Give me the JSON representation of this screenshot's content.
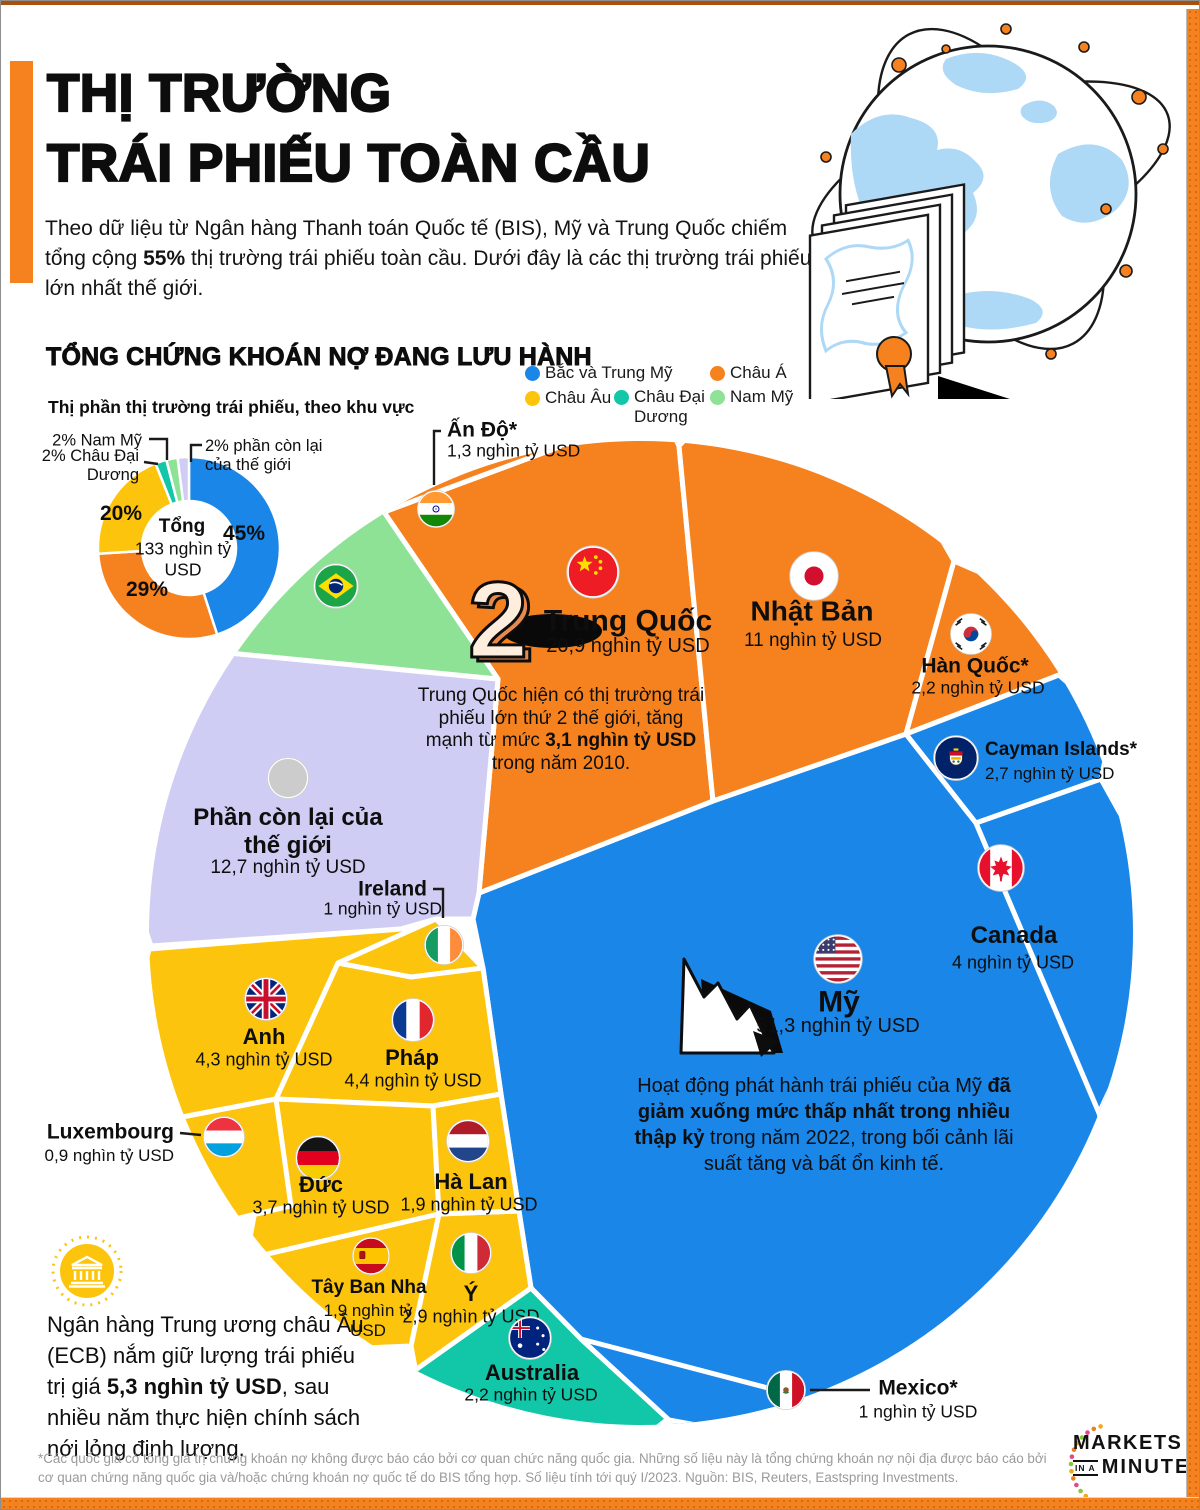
{
  "page": {
    "title_lines": [
      "THỊ TRƯỜNG",
      "TRÁI PHIẾU TOÀN CẦU"
    ],
    "intro_segments": [
      {
        "t": "Theo dữ liệu từ Ngân hàng Thanh toán Quốc tế (BIS), Mỹ và Trung Quốc chiếm tổng cộng "
      },
      {
        "t": "55%",
        "b": true
      },
      {
        "t": " thị trường trái phiếu toàn cầu. Dưới đây là các thị trường trái phiếu lớn nhất thế giới."
      }
    ],
    "footer_note": "*Các quốc gia có tổng giá trị chứng khoán nợ không được báo cáo bởi cơ quan chức năng quốc gia. Những số liệu này là tổng chứng khoán nợ nội địa được báo cáo bởi cơ quan chứng năng quốc gia và/hoặc chứng khoán nợ quốc tế do BIS tổng hợp. Số liệu tính tới quý I/2023. Nguồn: BIS, Reuters, Eastspring Investments.",
    "logo": {
      "word1": "MARKETS",
      "word2_small": "IN A",
      "word2": "MINUTE"
    }
  },
  "section": {
    "heading": "TỔNG CHỨNG KHOÁN NỢ ĐANG LƯU HÀNH",
    "subheading": "Thị phần thị trường trái phiếu, theo khu vực"
  },
  "legend": {
    "items": [
      {
        "id": "north-central-america",
        "label": "Bắc và Trung Mỹ",
        "color": "#1a86e8"
      },
      {
        "id": "asia",
        "label": "Châu Á",
        "color": "#f6821f"
      },
      {
        "id": "europe",
        "label": "Châu Âu",
        "color": "#fdc40d"
      },
      {
        "id": "oceania",
        "label": "Châu Đại Dương",
        "color": "#12c6a8"
      },
      {
        "id": "south-america",
        "label": "Nam Mỹ",
        "color": "#8ee296"
      }
    ]
  },
  "notes": {
    "china_note": [
      {
        "t": "Trung Quốc hiện có thị trường trái phiếu lớn thứ 2 thế giới, tăng mạnh từ mức "
      },
      {
        "t": "3,1 nghìn tỷ USD",
        "b": true
      },
      {
        "t": " trong năm 2010."
      }
    ],
    "us_note": [
      {
        "t": "Hoạt động phát hành trái phiếu của Mỹ "
      },
      {
        "t": "đã giảm xuống mức thấp nhất trong nhiều thập kỷ",
        "b": true
      },
      {
        "t": " trong năm 2022, trong bối cảnh lãi suất tăng và bất ổn kinh tế."
      }
    ],
    "ecb_note": [
      {
        "t": "Ngân hàng Trung ương châu Âu (ECB) nắm giữ lượng trái phiếu trị giá "
      },
      {
        "t": "5,3 nghìn tỷ USD",
        "b": true
      },
      {
        "t": ", sau nhiều năm thực hiện chính sách nới lỏng định lượng."
      }
    ]
  },
  "chart_data": [
    {
      "type": "pie",
      "subtype": "donut",
      "title": "Thị phần thị trường trái phiếu, theo khu vực",
      "center": {
        "label": "Tổng",
        "value": "133 nghìn tỷ",
        "unit": "USD"
      },
      "slices": [
        {
          "label": "Bắc và Trung Mỹ",
          "pct": 45,
          "color": "#1a86e8",
          "value_label": "45%"
        },
        {
          "label": "Châu Á",
          "pct": 29,
          "color": "#f6821f",
          "value_label": "29%"
        },
        {
          "label": "Châu Âu",
          "pct": 20,
          "color": "#fdc40d",
          "value_label": "20%"
        },
        {
          "label": "Châu Đại Dương",
          "pct": 2,
          "color": "#12c6a8",
          "value_label": "2% Châu Đại Dương"
        },
        {
          "label": "Nam Mỹ",
          "pct": 2,
          "color": "#8ee296",
          "value_label": "2% Nam Mỹ"
        },
        {
          "label": "Phần còn lại của thế giới",
          "pct": 2,
          "color": "#cfcdf3",
          "value_label": "2% phần còn lại của thế giới"
        }
      ],
      "legend_position": "top-right",
      "grid": false
    },
    {
      "type": "voronoi-treemap",
      "title": "TỔNG CHỨNG KHOÁN NỢ ĐANG LƯU HÀNH",
      "total": "133 nghìn tỷ USD",
      "china_rank_badge": "2",
      "countries": [
        {
          "id": "usa",
          "name": "Mỹ",
          "value": "51,3 nghìn tỷ USD",
          "region": "Bắc và Trung Mỹ"
        },
        {
          "id": "china",
          "name": "Trung Quốc",
          "value": "20,9 nghìn tỷ USD",
          "region": "Châu Á"
        },
        {
          "id": "rest",
          "name": "Phần còn lại của thế giới",
          "value": "12,7 nghìn tỷ USD",
          "region": "Phần còn lại của thế giới"
        },
        {
          "id": "japan",
          "name": "Nhật Bản",
          "value": "11 nghìn tỷ USD",
          "region": "Châu Á"
        },
        {
          "id": "france",
          "name": "Pháp",
          "value": "4,4 nghìn tỷ USD",
          "region": "Châu Âu"
        },
        {
          "id": "uk",
          "name": "Anh",
          "value": "4,3 nghìn tỷ USD",
          "region": "Châu Âu"
        },
        {
          "id": "canada",
          "name": "Canada",
          "value": "4 nghìn tỷ USD",
          "region": "Bắc và Trung Mỹ"
        },
        {
          "id": "germany",
          "name": "Đức",
          "value": "3,7 nghìn tỷ USD",
          "region": "Châu Âu"
        },
        {
          "id": "italy",
          "name": "Ý",
          "value": "2,9 nghìn tỷ USD",
          "region": "Châu Âu"
        },
        {
          "id": "cayman",
          "name": "Cayman Islands*",
          "value": "2,7 nghìn tỷ USD",
          "region": "Bắc và Trung Mỹ"
        },
        {
          "id": "korea",
          "name": "Hàn Quốc*",
          "value": "2,2 nghìn tỷ USD",
          "region": "Châu Á"
        },
        {
          "id": "australia",
          "name": "Australia",
          "value": "2,2 nghìn tỷ USD",
          "region": "Châu Đại Dương"
        },
        {
          "id": "netherlands",
          "name": "Hà Lan",
          "value": "1,9 nghìn tỷ USD",
          "region": "Châu Âu"
        },
        {
          "id": "spain",
          "name": "Tây Ban Nha",
          "value": "1,9 nghìn tỷ USD",
          "region": "Châu Âu"
        },
        {
          "id": "india",
          "name": "Ấn Độ*",
          "value": "1,3 nghìn tỷ USD",
          "region": "Châu Á"
        },
        {
          "id": "ireland",
          "name": "Ireland",
          "value": "1 nghìn tỷ USD",
          "region": "Châu Âu"
        },
        {
          "id": "mexico",
          "name": "Mexico*",
          "value": "1 nghìn tỷ USD",
          "region": "Bắc và Trung Mỹ"
        },
        {
          "id": "luxembourg",
          "name": "Luxembourg",
          "value": "0,9 nghìn tỷ USD",
          "region": "Châu Âu"
        },
        {
          "id": "brazil",
          "name": "",
          "value": "",
          "region": "Nam Mỹ"
        }
      ]
    }
  ]
}
